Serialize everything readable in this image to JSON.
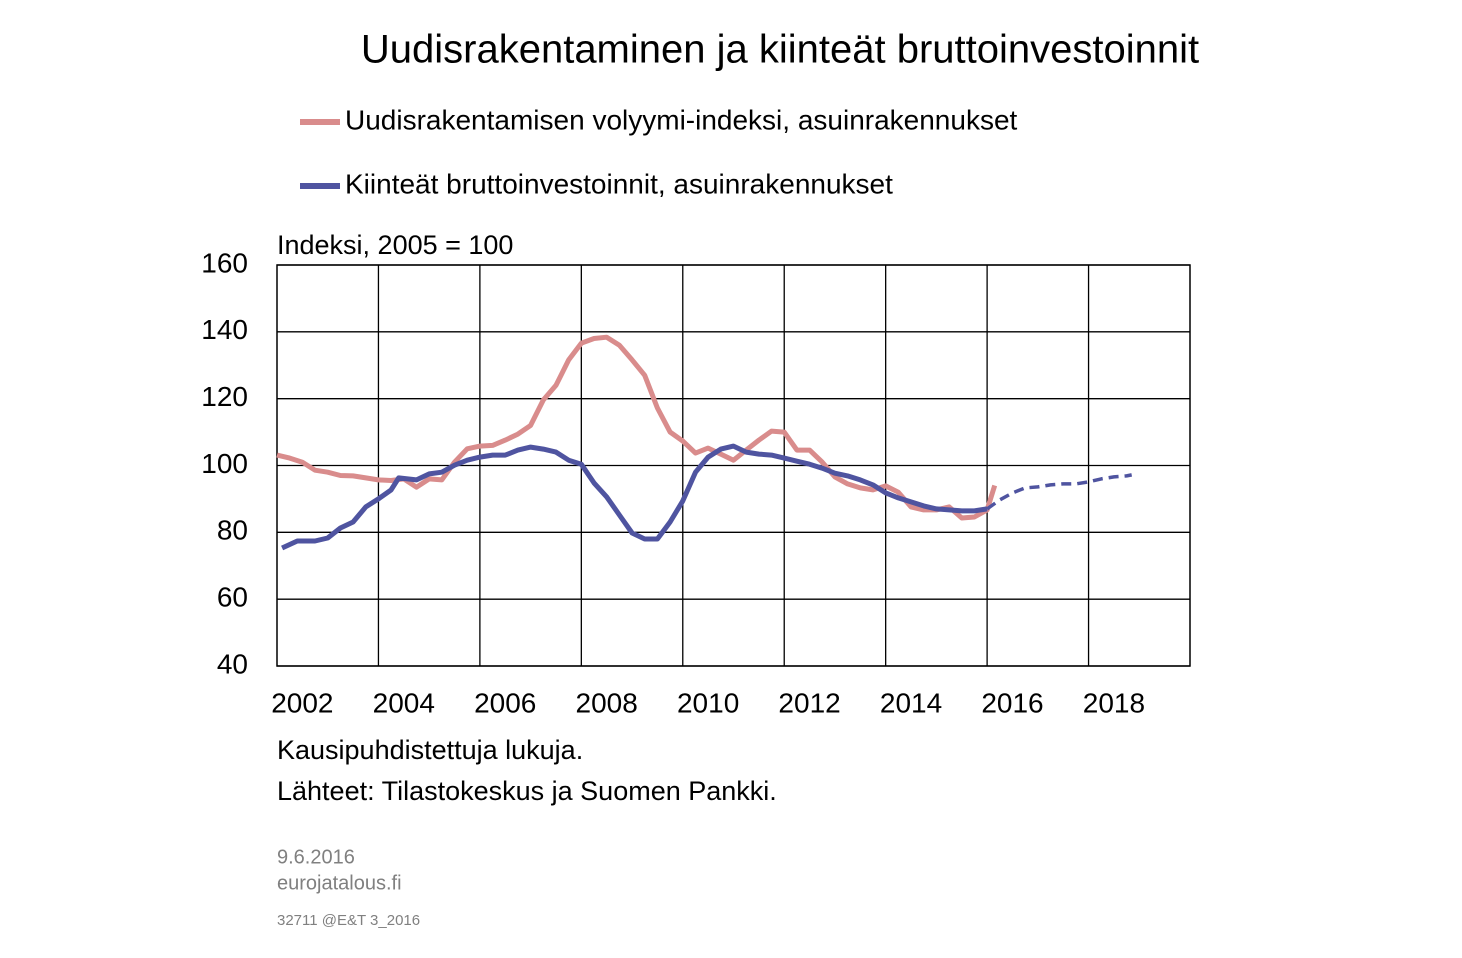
{
  "chart_data": {
    "type": "line",
    "title": "Uudisrakentaminen ja kiinteät bruttoinvestoinnit",
    "y_label": "Indeksi, 2005 = 100",
    "notes": [
      "Kausipuhdistettuja lukuja.",
      "Lähteet: Tilastokeskus ja Suomen Pankki."
    ],
    "xlim": [
      2002,
      2020
    ],
    "xticks": [
      {
        "value": 2002.5,
        "label": "2002"
      },
      {
        "value": 2004.5,
        "label": "2004"
      },
      {
        "value": 2006.5,
        "label": "2006"
      },
      {
        "value": 2008.5,
        "label": "2008"
      },
      {
        "value": 2010.5,
        "label": "2010"
      },
      {
        "value": 2012.5,
        "label": "2012"
      },
      {
        "value": 2014.5,
        "label": "2014"
      },
      {
        "value": 2016.5,
        "label": "2016"
      },
      {
        "value": 2018.5,
        "label": "2018"
      }
    ],
    "xgrid": [
      2004,
      2006,
      2008,
      2010,
      2012,
      2014,
      2016,
      2018
    ],
    "ylim": [
      40,
      160
    ],
    "yticks": [
      40,
      60,
      80,
      100,
      120,
      140,
      160
    ],
    "grid": true,
    "series": [
      {
        "name": "Uudisrakentamisen volyymi-indeksi, asuinrakennukset",
        "color": "#d98c8c",
        "x": [
          2002.0,
          2002.25,
          2002.5,
          2002.75,
          2003.0,
          2003.25,
          2003.5,
          2003.75,
          2004.0,
          2004.25,
          2004.5,
          2004.75,
          2005.0,
          2005.25,
          2005.5,
          2005.75,
          2006.0,
          2006.25,
          2006.5,
          2006.75,
          2007.0,
          2007.25,
          2007.5,
          2007.75,
          2008.0,
          2008.25,
          2008.5,
          2008.75,
          2009.0,
          2009.25,
          2009.5,
          2009.75,
          2010.0,
          2010.25,
          2010.5,
          2010.75,
          2011.0,
          2011.25,
          2011.5,
          2011.75,
          2012.0,
          2012.25,
          2012.5,
          2012.75,
          2013.0,
          2013.25,
          2013.5,
          2013.75,
          2014.0,
          2014.25,
          2014.5,
          2014.75,
          2015.0,
          2015.25,
          2015.5,
          2015.75,
          2016.0,
          2016.15
        ],
        "values": [
          103.1,
          102.2,
          101,
          98.6,
          98,
          97,
          96.9,
          96.3,
          95.7,
          95.5,
          96,
          93.5,
          96,
          95.7,
          101,
          105,
          105.8,
          106,
          107.6,
          109.4,
          112,
          119.6,
          124,
          131.6,
          136.6,
          138,
          138.4,
          136,
          131.6,
          127,
          117.2,
          110,
          107.3,
          103.7,
          105.2,
          103.4,
          101.6,
          104.6,
          107.6,
          110.3,
          110,
          104.6,
          104.6,
          101,
          96.6,
          94.5,
          93.3,
          92.7,
          93.9,
          92,
          87.6,
          86.7,
          86.7,
          87.6,
          84.3,
          84.6,
          86.7,
          94
        ]
      },
      {
        "name": "Kiinteät bruttoinvestoinnit, asuinrakennukset",
        "color": "#4f54a0",
        "x": [
          2002.1,
          2002.4,
          2002.75,
          2003.0,
          2003.25,
          2003.5,
          2003.75,
          2004.0,
          2004.25,
          2004.4,
          2004.75,
          2005.0,
          2005.25,
          2005.5,
          2005.75,
          2006.0,
          2006.25,
          2006.5,
          2006.75,
          2007.0,
          2007.25,
          2007.5,
          2007.75,
          2008.0,
          2008.25,
          2008.5,
          2008.75,
          2009.0,
          2009.25,
          2009.5,
          2009.75,
          2010.0,
          2010.25,
          2010.5,
          2010.75,
          2011.0,
          2011.25,
          2011.5,
          2011.75,
          2012.0,
          2012.25,
          2012.5,
          2012.75,
          2013.0,
          2013.25,
          2013.5,
          2013.75,
          2014.0,
          2014.25,
          2014.5,
          2014.75,
          2015.0,
          2015.25,
          2015.5,
          2015.75,
          2016.0
        ],
        "values": [
          75.3,
          77.4,
          77.4,
          78.3,
          81.3,
          83.1,
          87.6,
          90,
          92.7,
          96.3,
          95.7,
          97.5,
          98,
          100.1,
          101.6,
          102.5,
          103.1,
          103.1,
          104.6,
          105.5,
          104.9,
          104,
          101.6,
          100.4,
          94.8,
          90.6,
          85.2,
          79.8,
          78,
          78,
          83.1,
          89.4,
          98,
          102.5,
          104.9,
          105.8,
          104,
          103.4,
          103.1,
          102.2,
          101.3,
          100.4,
          99.2,
          97.7,
          96.9,
          95.7,
          94.2,
          91.8,
          90.3,
          89.1,
          87.9,
          87,
          86.7,
          86.4,
          86.4,
          87
        ]
      },
      {
        "color": "#4f54a0",
        "dashed": true,
        "x": [
          2016.0,
          2016.25,
          2016.5,
          2016.75,
          2017.0,
          2017.25,
          2017.5,
          2017.75,
          2018.0,
          2018.25,
          2018.5,
          2018.75,
          2018.85
        ],
        "values": [
          87,
          89.7,
          91.8,
          93.3,
          93.6,
          94.2,
          94.5,
          94.5,
          95.1,
          96,
          96.6,
          96.9,
          97.2
        ]
      }
    ]
  },
  "footer": {
    "date": "9.6.2016",
    "site": "eurojatalous.fi",
    "code": "32711 @E&T 3_2016"
  }
}
